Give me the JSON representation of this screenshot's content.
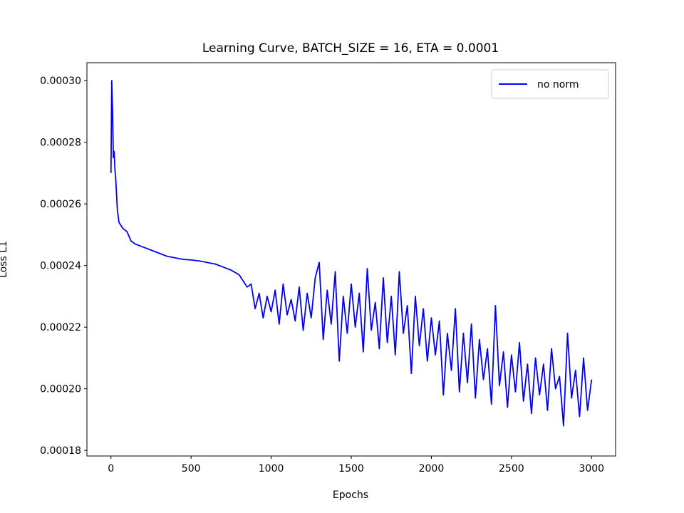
{
  "chart_data": {
    "type": "line",
    "title": "Learning Curve, BATCH_SIZE = 16, ETA = 0.0001",
    "x_label": "Epochs",
    "y_label": "Loss L1",
    "x": [
      0,
      5,
      10,
      15,
      20,
      25,
      30,
      40,
      50,
      75,
      100,
      125,
      150,
      200,
      250,
      300,
      350,
      400,
      450,
      500,
      550,
      600,
      650,
      700,
      750,
      800,
      825,
      850,
      875,
      900,
      925,
      950,
      975,
      1000,
      1025,
      1050,
      1075,
      1100,
      1125,
      1150,
      1175,
      1200,
      1225,
      1250,
      1275,
      1300,
      1325,
      1350,
      1375,
      1400,
      1425,
      1450,
      1475,
      1500,
      1525,
      1550,
      1575,
      1600,
      1625,
      1650,
      1675,
      1700,
      1725,
      1750,
      1775,
      1800,
      1825,
      1850,
      1875,
      1900,
      1925,
      1950,
      1975,
      2000,
      2025,
      2050,
      2075,
      2100,
      2125,
      2150,
      2175,
      2200,
      2225,
      2250,
      2275,
      2300,
      2325,
      2350,
      2375,
      2400,
      2425,
      2450,
      2475,
      2500,
      2525,
      2550,
      2575,
      2600,
      2625,
      2650,
      2675,
      2700,
      2725,
      2750,
      2775,
      2800,
      2825,
      2850,
      2875,
      2900,
      2925,
      2950,
      2975,
      3000
    ],
    "series": [
      {
        "name": "no norm",
        "color": "#0000ff",
        "values": [
          0.00027,
          0.0003,
          0.00029,
          0.000275,
          0.000277,
          0.000271,
          0.000268,
          0.000258,
          0.000254,
          0.000252,
          0.000251,
          0.000248,
          0.000247,
          0.000246,
          0.000245,
          0.000244,
          0.000243,
          0.0002425,
          0.000242,
          0.0002418,
          0.0002415,
          0.000241,
          0.0002405,
          0.0002395,
          0.0002385,
          0.000237,
          0.000235,
          0.000233,
          0.000234,
          0.000226,
          0.000231,
          0.000223,
          0.00023,
          0.000225,
          0.000232,
          0.000221,
          0.000234,
          0.000224,
          0.000229,
          0.000222,
          0.000233,
          0.000219,
          0.000231,
          0.000223,
          0.000236,
          0.000241,
          0.000216,
          0.000232,
          0.000221,
          0.000238,
          0.000209,
          0.00023,
          0.000218,
          0.000234,
          0.00022,
          0.000231,
          0.000212,
          0.000239,
          0.000219,
          0.000228,
          0.000213,
          0.000236,
          0.000215,
          0.00023,
          0.000211,
          0.000238,
          0.000218,
          0.000227,
          0.000205,
          0.00023,
          0.000214,
          0.000226,
          0.000209,
          0.000223,
          0.000211,
          0.000222,
          0.000198,
          0.000218,
          0.000206,
          0.000226,
          0.000199,
          0.000218,
          0.000202,
          0.000221,
          0.000197,
          0.000216,
          0.000203,
          0.000213,
          0.000195,
          0.000227,
          0.000201,
          0.000212,
          0.000194,
          0.000211,
          0.000199,
          0.000215,
          0.000196,
          0.000208,
          0.000192,
          0.00021,
          0.000198,
          0.000208,
          0.000193,
          0.000213,
          0.0002,
          0.000204,
          0.000188,
          0.000218,
          0.000197,
          0.000206,
          0.000191,
          0.00021,
          0.000193,
          0.000203
        ]
      }
    ],
    "xlim": [
      -150,
      3150
    ],
    "xticks": [
      0,
      500,
      1000,
      1500,
      2000,
      2500,
      3000
    ],
    "ylim": [
      0.0001782,
      0.0003058
    ],
    "yticks": [
      {
        "value": 0.00018,
        "label": "0.00018"
      },
      {
        "value": 0.0002,
        "label": "0.00020"
      },
      {
        "value": 0.00022,
        "label": "0.00022"
      },
      {
        "value": 0.00024,
        "label": "0.00024"
      },
      {
        "value": 0.00026,
        "label": "0.00026"
      },
      {
        "value": 0.00028,
        "label": "0.00028"
      },
      {
        "value": 0.0003,
        "label": "0.00030"
      }
    ],
    "grid": false,
    "legend": "upper right"
  }
}
